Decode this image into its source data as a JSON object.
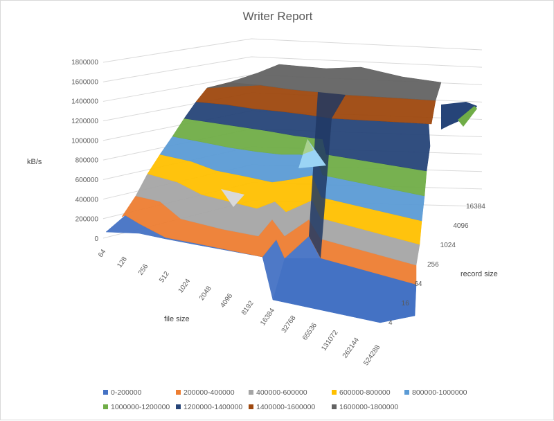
{
  "chart_data": {
    "type": "surface",
    "title": "Writer Report",
    "zlabel": "kB/s",
    "xlabel": "file size",
    "ylabel": "record size",
    "zlim": [
      0,
      1800000
    ],
    "z_ticks": [
      "0",
      "200000",
      "400000",
      "600000",
      "800000",
      "1000000",
      "1200000",
      "1400000",
      "1600000",
      "1800000"
    ],
    "x_ticks": [
      "64",
      "128",
      "256",
      "512",
      "1024",
      "2048",
      "4096",
      "8192",
      "16384",
      "32768",
      "65536",
      "131072",
      "262144",
      "524288"
    ],
    "y_ticks": [
      "4",
      "16",
      "64",
      "256",
      "1024",
      "4096",
      "16384"
    ],
    "legend": {
      "position": "bottom",
      "entries": [
        {
          "label": "0-200000",
          "color": "#4472c4"
        },
        {
          "label": "200000-400000",
          "color": "#ed7d31"
        },
        {
          "label": "400000-600000",
          "color": "#a5a5a5"
        },
        {
          "label": "600000-800000",
          "color": "#ffc000"
        },
        {
          "label": "800000-1000000",
          "color": "#5b9bd5"
        },
        {
          "label": "1000000-1200000",
          "color": "#70ad47"
        },
        {
          "label": "1200000-1400000",
          "color": "#264478"
        },
        {
          "label": "1400000-1600000",
          "color": "#9e480e"
        },
        {
          "label": "1600000-1800000",
          "color": "#636363"
        }
      ]
    },
    "surface_profile": {
      "description_keys": [
        "file_size",
        "approx_kBps_plateau"
      ],
      "points": [
        [
          "64",
          50000
        ],
        [
          "128",
          200000
        ],
        [
          "256",
          350000
        ],
        [
          "512",
          650000
        ],
        [
          "1024",
          1150000
        ],
        [
          "2048",
          1400000
        ],
        [
          "4096",
          1550000
        ],
        [
          "8192",
          1650000
        ],
        [
          "16384",
          1700000
        ],
        [
          "32768",
          0
        ],
        [
          "65536",
          0
        ],
        [
          "131072",
          0
        ],
        [
          "262144",
          0
        ],
        [
          "524288",
          0
        ]
      ]
    }
  }
}
